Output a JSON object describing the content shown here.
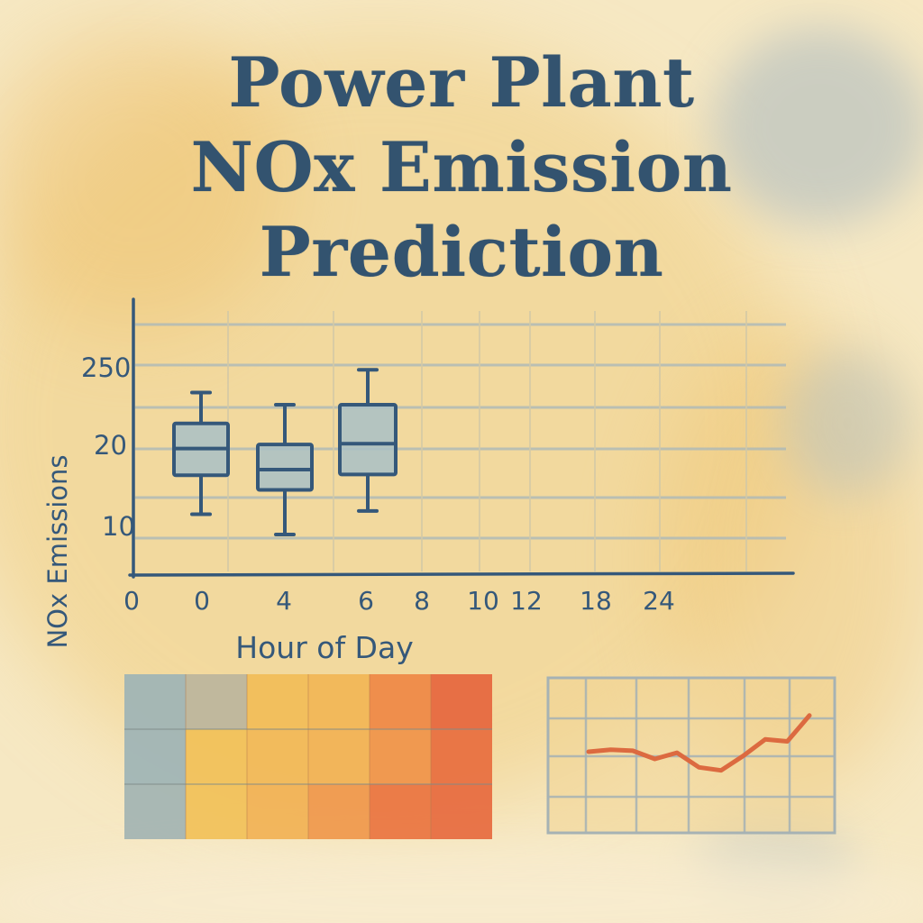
{
  "title_lines": [
    "Power Plant",
    "NOx Emission",
    "Prediction"
  ],
  "colors": {
    "ink": "#35587a",
    "box_fill": "#a9bfc6",
    "paper": "#f5e6bf",
    "line_series": "#dc6a40"
  },
  "chart_data": [
    {
      "type": "box",
      "xlabel": "Hour of Day",
      "ylabel": "NOx Emissions",
      "x_ticks": [
        "0",
        "0",
        "4",
        "6",
        "8",
        "10",
        "12",
        "18",
        "24"
      ],
      "y_ticks": [
        "10",
        "20",
        "250"
      ],
      "grid": true,
      "boxes": [
        {
          "x": 0,
          "whisker_low": 11.5,
          "q1": 16.3,
          "median": 19.6,
          "q3": 22.7,
          "whisker_high": 26.5
        },
        {
          "x": 4,
          "whisker_low": 9.0,
          "q1": 14.5,
          "median": 17.0,
          "q3": 20.1,
          "whisker_high": 25.0
        },
        {
          "x": 6,
          "whisker_low": 11.9,
          "q1": 16.4,
          "median": 20.2,
          "q3": 25.0,
          "whisker_high": 29.3
        }
      ]
    },
    {
      "type": "heatmap",
      "rows": 3,
      "cols": 6,
      "cells": [
        [
          0.05,
          0.25,
          0.45,
          0.5,
          0.75,
          0.95
        ],
        [
          0.05,
          0.4,
          0.48,
          0.55,
          0.7,
          0.9
        ],
        [
          0.08,
          0.4,
          0.55,
          0.68,
          0.85,
          0.92
        ]
      ]
    },
    {
      "type": "line",
      "grid": true,
      "values": [
        4.0,
        4.2,
        4.1,
        3.3,
        3.9,
        2.5,
        2.2,
        3.6,
        5.2,
        5.0,
        7.5
      ]
    }
  ]
}
